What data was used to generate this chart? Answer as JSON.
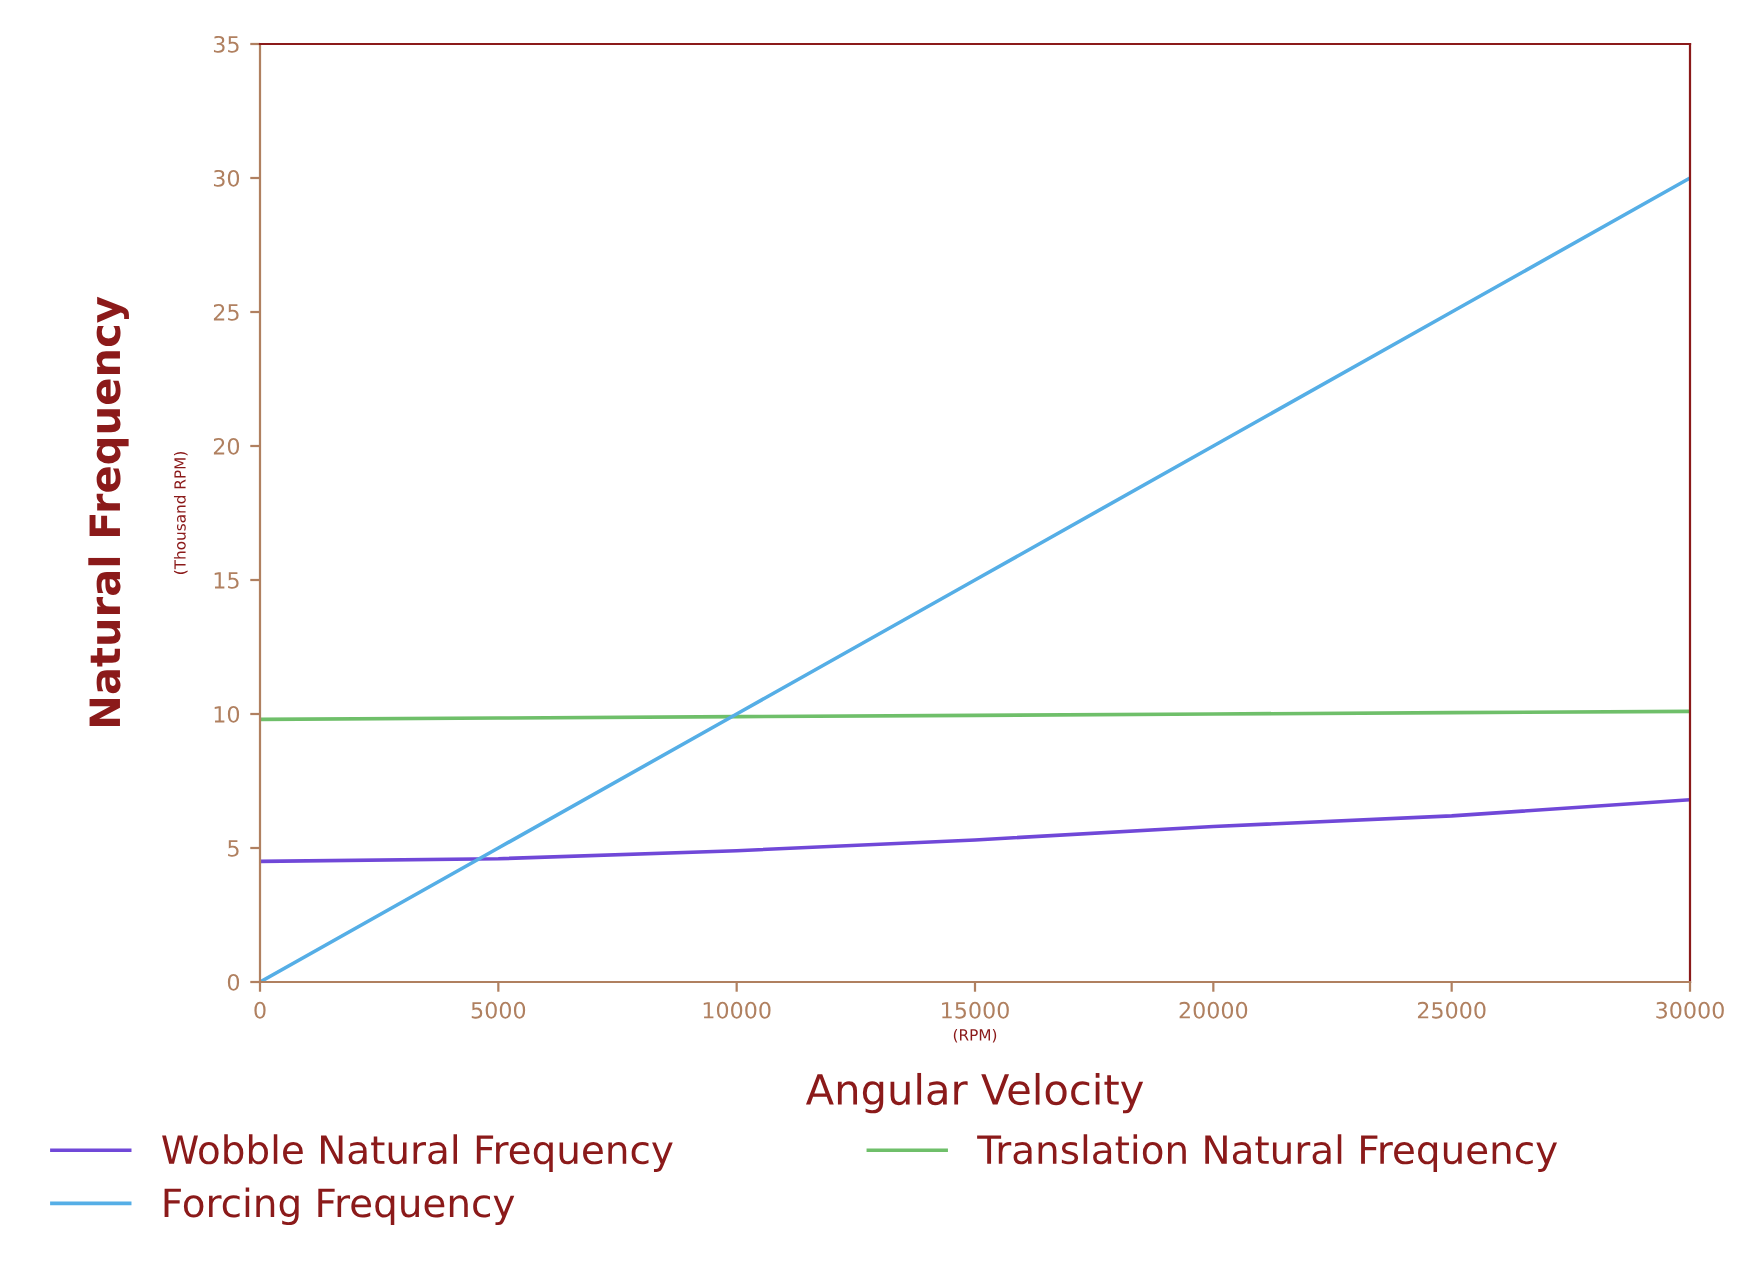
{
  "chart_data": {
    "type": "line",
    "xlabel": "Angular Velocity",
    "ylabel": "Natural Frequency",
    "annotations": [
      "(RPM)",
      "(Thousand RPM)"
    ],
    "x": [
      0,
      5000,
      10000,
      15000,
      20000,
      25000,
      30000
    ],
    "series": [
      {
        "name": "Wobble Natural Frequency",
        "color": "#7048d8",
        "values": [
          4.5,
          4.6,
          4.9,
          5.3,
          5.8,
          6.2,
          6.8
        ]
      },
      {
        "name": "Translation Natural Frequency",
        "color": "#6fbf6a",
        "values": [
          9.8,
          9.85,
          9.9,
          9.95,
          10.0,
          10.05,
          10.1
        ]
      },
      {
        "name": "Forcing Frequency",
        "color": "#55aee6",
        "values": [
          0,
          5,
          10,
          15,
          20,
          25,
          30
        ]
      }
    ],
    "xlim": [
      0,
      30000
    ],
    "xticks": [
      0,
      5000,
      10000,
      15000,
      20000,
      25000,
      30000
    ],
    "ylim": [
      0,
      35
    ],
    "yticks": [
      0,
      5,
      10,
      15,
      20,
      25,
      30,
      35
    ],
    "grid": false,
    "legend": "bottom",
    "marker": "none",
    "line_style": "solid"
  }
}
